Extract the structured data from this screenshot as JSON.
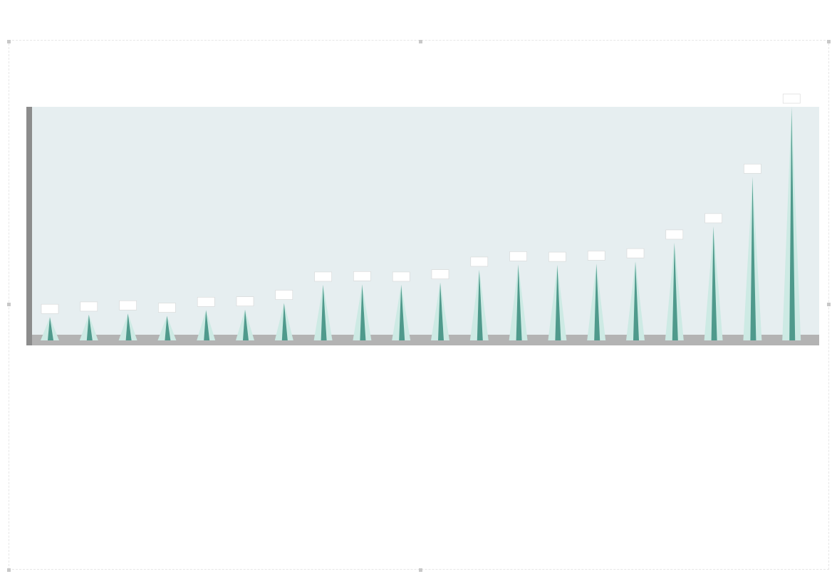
{
  "chart_data": {
    "type": "bar",
    "title": "",
    "xlabel": "",
    "ylabel": "",
    "ylim": [
      0,
      1000
    ],
    "grid": false,
    "legend": "none",
    "categories": [
      "",
      "",
      "",
      "",
      "",
      "",
      "",
      "",
      "",
      "",
      "",
      "",
      "",
      "",
      "",
      "",
      "",
      "",
      "",
      ""
    ],
    "values": [
      100,
      110,
      115,
      105,
      130,
      132,
      160,
      238,
      240,
      238,
      248,
      302,
      325,
      323,
      328,
      338,
      418,
      488,
      700,
      1000
    ],
    "data_labels": [
      "",
      "",
      "",
      "",
      "",
      "",
      "",
      "",
      "",
      "",
      "",
      "",
      "",
      "",
      "",
      "",
      "",
      "",
      "",
      ""
    ],
    "colors": {
      "spike": "#4f9a8c",
      "spike_light": "#cdeae4",
      "plot_background": "#e6eef0",
      "floor": "#b3b3b3",
      "axis_bar": "#8c8c8c",
      "label_box": "#ffffff"
    }
  },
  "source": ""
}
